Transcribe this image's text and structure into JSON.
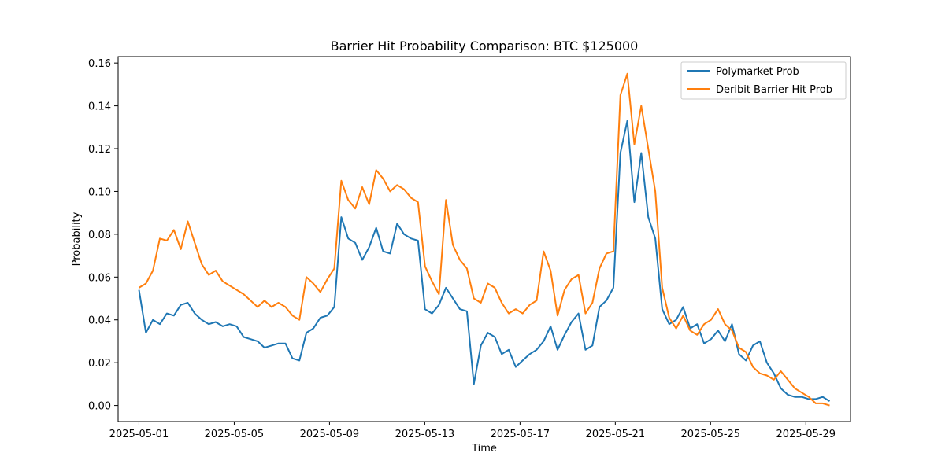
{
  "chart_data": {
    "type": "line",
    "title": "Barrier Hit Probability Comparison: BTC $125000",
    "xlabel": "Time",
    "ylabel": "Probability",
    "x_start": "2025-05-01",
    "x_end": "2025-05-30",
    "xlim": [
      "2025-04-30T03:00",
      "2025-05-30T21:00"
    ],
    "ylim": [
      -0.0075,
      0.163
    ],
    "x_ticks": [
      "2025-05-01",
      "2025-05-05",
      "2025-05-09",
      "2025-05-13",
      "2025-05-17",
      "2025-05-21",
      "2025-05-25",
      "2025-05-29"
    ],
    "y_ticks": [
      "0.00",
      "0.02",
      "0.04",
      "0.06",
      "0.08",
      "0.10",
      "0.12",
      "0.14",
      "0.16"
    ],
    "legend_position": "upper right",
    "grid": false,
    "series": [
      {
        "name": "Polymarket Prob",
        "color": "#1f77b4",
        "values": [
          0.054,
          0.034,
          0.04,
          0.038,
          0.043,
          0.042,
          0.047,
          0.048,
          0.043,
          0.04,
          0.038,
          0.039,
          0.037,
          0.038,
          0.037,
          0.032,
          0.031,
          0.03,
          0.027,
          0.028,
          0.029,
          0.029,
          0.022,
          0.021,
          0.034,
          0.036,
          0.041,
          0.042,
          0.046,
          0.088,
          0.078,
          0.076,
          0.068,
          0.074,
          0.083,
          0.072,
          0.071,
          0.085,
          0.08,
          0.078,
          0.077,
          0.045,
          0.043,
          0.047,
          0.055,
          0.05,
          0.045,
          0.044,
          0.01,
          0.028,
          0.034,
          0.032,
          0.024,
          0.026,
          0.018,
          0.021,
          0.024,
          0.026,
          0.03,
          0.037,
          0.026,
          0.033,
          0.039,
          0.043,
          0.026,
          0.028,
          0.046,
          0.049,
          0.055,
          0.118,
          0.133,
          0.095,
          0.118,
          0.088,
          0.078,
          0.045,
          0.038,
          0.04,
          0.046,
          0.036,
          0.038,
          0.029,
          0.031,
          0.035,
          0.03,
          0.038,
          0.024,
          0.021,
          0.028,
          0.03,
          0.02,
          0.015,
          0.008,
          0.005,
          0.004,
          0.004,
          0.003,
          0.003,
          0.004,
          0.002
        ]
      },
      {
        "name": "Deribit Barrier Hit Prob",
        "color": "#ff7f0e",
        "values": [
          0.055,
          0.057,
          0.063,
          0.078,
          0.077,
          0.082,
          0.073,
          0.086,
          0.076,
          0.066,
          0.061,
          0.063,
          0.058,
          0.056,
          0.054,
          0.052,
          0.049,
          0.046,
          0.049,
          0.046,
          0.048,
          0.046,
          0.042,
          0.04,
          0.06,
          0.057,
          0.053,
          0.059,
          0.064,
          0.105,
          0.096,
          0.092,
          0.102,
          0.094,
          0.11,
          0.106,
          0.1,
          0.103,
          0.101,
          0.097,
          0.095,
          0.065,
          0.058,
          0.052,
          0.096,
          0.075,
          0.068,
          0.064,
          0.05,
          0.048,
          0.057,
          0.055,
          0.048,
          0.043,
          0.045,
          0.043,
          0.047,
          0.049,
          0.072,
          0.063,
          0.042,
          0.054,
          0.059,
          0.061,
          0.043,
          0.048,
          0.064,
          0.071,
          0.072,
          0.145,
          0.155,
          0.122,
          0.14,
          0.12,
          0.1,
          0.055,
          0.041,
          0.036,
          0.042,
          0.035,
          0.033,
          0.038,
          0.04,
          0.045,
          0.038,
          0.035,
          0.027,
          0.025,
          0.018,
          0.015,
          0.014,
          0.012,
          0.016,
          0.012,
          0.008,
          0.006,
          0.004,
          0.001,
          0.001,
          0.0
        ]
      }
    ]
  }
}
